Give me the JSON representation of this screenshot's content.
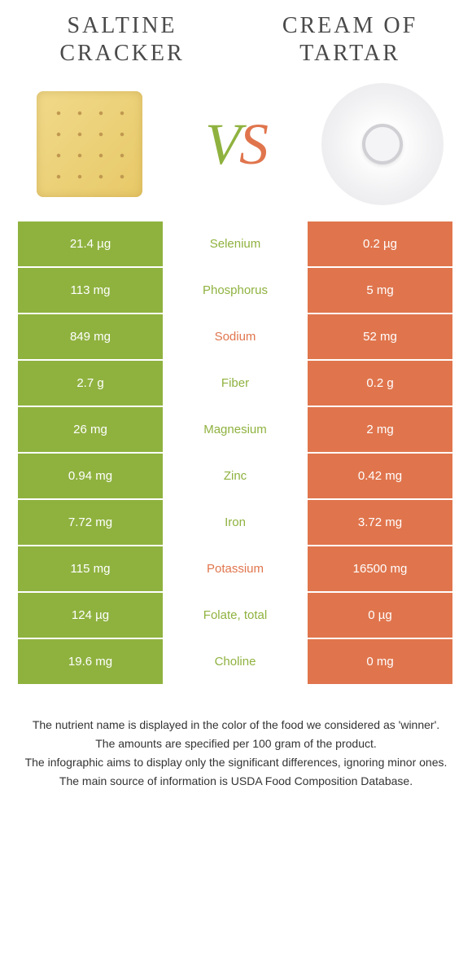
{
  "header": {
    "left_title": "SALTINE CRACKER",
    "right_title": "CREAM OF TARTAR",
    "vs_v": "V",
    "vs_s": "S"
  },
  "colors": {
    "green": "#8fb23f",
    "orange": "#e0754d",
    "bg": "#ffffff",
    "text_dark": "#4a4a4a",
    "footer_text": "#333333"
  },
  "table": {
    "rows": [
      {
        "left": "21.4 µg",
        "label": "Selenium",
        "right": "0.2 µg",
        "winner": "green"
      },
      {
        "left": "113 mg",
        "label": "Phosphorus",
        "right": "5 mg",
        "winner": "green"
      },
      {
        "left": "849 mg",
        "label": "Sodium",
        "right": "52 mg",
        "winner": "orange"
      },
      {
        "left": "2.7 g",
        "label": "Fiber",
        "right": "0.2 g",
        "winner": "green"
      },
      {
        "left": "26 mg",
        "label": "Magnesium",
        "right": "2 mg",
        "winner": "green"
      },
      {
        "left": "0.94 mg",
        "label": "Zinc",
        "right": "0.42 mg",
        "winner": "green"
      },
      {
        "left": "7.72 mg",
        "label": "Iron",
        "right": "3.72 mg",
        "winner": "green"
      },
      {
        "left": "115 mg",
        "label": "Potassium",
        "right": "16500 mg",
        "winner": "orange"
      },
      {
        "left": "124 µg",
        "label": "Folate, total",
        "right": "0 µg",
        "winner": "green"
      },
      {
        "left": "19.6 mg",
        "label": "Choline",
        "right": "0 mg",
        "winner": "green"
      }
    ]
  },
  "footer": {
    "line1": "The nutrient name is displayed in the color of the food we considered as 'winner'.",
    "line2": "The amounts are specified per 100 gram of the product.",
    "line3": "The infographic aims to display only the significant differences, ignoring minor ones.",
    "line4": "The main source of information is USDA Food Composition Database."
  }
}
